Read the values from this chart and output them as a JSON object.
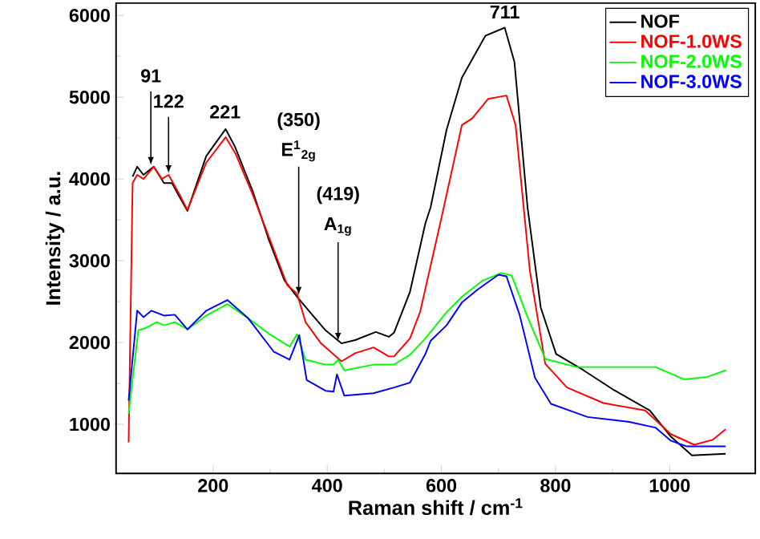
{
  "chart_data": {
    "type": "line",
    "xlabel": "Raman shift / cm$^{-1}$",
    "ylabel": "Intensity / a.u.",
    "xlim": [
      30,
      1150
    ],
    "ylim": [
      400,
      6150
    ],
    "xticks": [
      200,
      400,
      600,
      800,
      1000
    ],
    "yticks": [
      1000,
      2000,
      3000,
      4000,
      5000,
      6000
    ],
    "legend": "top right",
    "series": [
      {
        "name": "NOF",
        "color": "#000000",
        "x": [
          59,
          67,
          78,
          96,
          114,
          128,
          142,
          155,
          188,
          222,
          238,
          270,
          297,
          325,
          347,
          370,
          397,
          425,
          449,
          485,
          508,
          517,
          545,
          572,
          581,
          609,
          636,
          677,
          711,
          728,
          751,
          774,
          801,
          847,
          902,
          965,
          1002,
          1039,
          1098
        ],
        "values": [
          4030,
          4150,
          4050,
          4150,
          3950,
          3950,
          3770,
          3610,
          4280,
          4610,
          4400,
          3840,
          3270,
          2760,
          2560,
          2370,
          2150,
          1990,
          2030,
          2130,
          2070,
          2120,
          2620,
          3460,
          3650,
          4600,
          5240,
          5750,
          5850,
          5430,
          3650,
          2430,
          1860,
          1670,
          1420,
          1170,
          850,
          620,
          640
        ]
      },
      {
        "name": "NOF-1.0WS",
        "color": "#ff0000",
        "x": [
          52,
          59,
          67,
          78,
          96,
          110,
          122,
          142,
          155,
          188,
          222,
          240,
          270,
          300,
          330,
          347,
          362,
          389,
          425,
          449,
          481,
          508,
          517,
          545,
          563,
          600,
          636,
          654,
          682,
          714,
          730,
          755,
          782,
          820,
          884,
          957,
          1002,
          1043,
          1075,
          1098
        ],
        "values": [
          780,
          3950,
          4050,
          4000,
          4150,
          4000,
          4050,
          3800,
          3620,
          4200,
          4510,
          4300,
          3800,
          3250,
          2700,
          2600,
          2250,
          1990,
          1770,
          1870,
          1940,
          1830,
          1830,
          2050,
          2380,
          3520,
          4660,
          4740,
          4980,
          5020,
          4660,
          2880,
          1740,
          1450,
          1260,
          1170,
          880,
          750,
          810,
          940
        ]
      },
      {
        "name": "NOF-2.0WS",
        "color": "#00ff00",
        "x": [
          52,
          69,
          83,
          101,
          114,
          133,
          155,
          188,
          225,
          261,
          297,
          334,
          347,
          362,
          397,
          411,
          419,
          430,
          481,
          517,
          545,
          572,
          609,
          636,
          673,
          705,
          723,
          751,
          782,
          837,
          902,
          975,
          1025,
          1066,
          1098
        ],
        "values": [
          1130,
          2150,
          2180,
          2250,
          2210,
          2250,
          2160,
          2330,
          2470,
          2300,
          2110,
          1950,
          2100,
          1790,
          1730,
          1730,
          1790,
          1660,
          1730,
          1730,
          1850,
          2050,
          2370,
          2560,
          2760,
          2850,
          2820,
          2310,
          1800,
          1700,
          1700,
          1700,
          1550,
          1580,
          1660
        ]
      },
      {
        "name": "NOF-3.0WS",
        "color": "#0000ff",
        "x": [
          52,
          67,
          78,
          92,
          114,
          133,
          155,
          188,
          225,
          261,
          306,
          334,
          351,
          364,
          397,
          411,
          417,
          430,
          481,
          517,
          545,
          572,
          581,
          609,
          636,
          664,
          700,
          714,
          737,
          764,
          792,
          856,
          929,
          975,
          1002,
          1030,
          1098
        ],
        "values": [
          1290,
          2390,
          2310,
          2390,
          2330,
          2340,
          2160,
          2390,
          2520,
          2300,
          1890,
          1790,
          2090,
          1540,
          1410,
          1400,
          1610,
          1350,
          1380,
          1450,
          1510,
          1860,
          2020,
          2210,
          2490,
          2650,
          2830,
          2810,
          2340,
          1570,
          1250,
          1090,
          1030,
          960,
          800,
          730,
          730
        ]
      }
    ],
    "annotations": [
      {
        "text": "91",
        "x": 91,
        "y": 4150
      },
      {
        "text": "122",
        "x": 122,
        "y": 4050
      },
      {
        "text": "221",
        "x": 221,
        "y": 4610
      },
      "(350)",
      {
        "text": "E$^{1}$$_{2g}$",
        "x": 350,
        "y": 2560
      },
      "(419)",
      {
        "text": "A$_{1g}$",
        "x": 419,
        "y": 2000
      },
      {
        "text": "711",
        "x": 711,
        "y": 5850
      }
    ]
  }
}
